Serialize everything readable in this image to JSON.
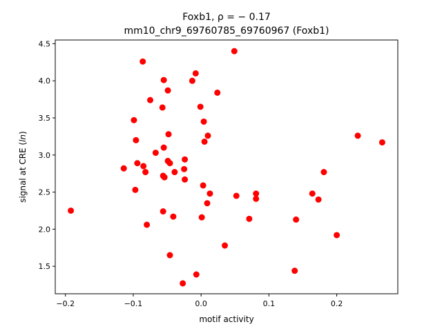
{
  "chart_data": {
    "type": "scatter",
    "title_line1": "Foxb1, ρ = − 0.17",
    "title_line2": "mm10_chr9_69760785_69760967 (Foxb1)",
    "xlabel": "motif activity",
    "ylabel": "signal at CRE (ln)",
    "xlim": [
      -0.215,
      0.29
    ],
    "ylim": [
      1.13,
      4.55
    ],
    "xticks": [
      -0.2,
      -0.1,
      0.0,
      0.1,
      0.2
    ],
    "xtick_labels": [
      "−0.2",
      "−0.1",
      "0.0",
      "0.1",
      "0.2"
    ],
    "yticks": [
      1.5,
      2.0,
      2.5,
      3.0,
      3.5,
      4.0,
      4.5
    ],
    "ytick_labels": [
      "1.5",
      "2.0",
      "2.5",
      "3.0",
      "3.5",
      "4.0",
      "4.5"
    ],
    "grid": false,
    "marker_color": "#ff0000",
    "points": [
      {
        "x": -0.192,
        "y": 2.25
      },
      {
        "x": -0.114,
        "y": 2.82
      },
      {
        "x": -0.099,
        "y": 3.47
      },
      {
        "x": -0.097,
        "y": 2.53
      },
      {
        "x": -0.096,
        "y": 3.2
      },
      {
        "x": -0.094,
        "y": 2.89
      },
      {
        "x": -0.086,
        "y": 4.26
      },
      {
        "x": -0.085,
        "y": 2.85
      },
      {
        "x": -0.082,
        "y": 2.77
      },
      {
        "x": -0.08,
        "y": 2.06
      },
      {
        "x": -0.075,
        "y": 3.74
      },
      {
        "x": -0.067,
        "y": 3.03
      },
      {
        "x": -0.057,
        "y": 3.64
      },
      {
        "x": -0.056,
        "y": 2.72
      },
      {
        "x": -0.056,
        "y": 2.24
      },
      {
        "x": -0.055,
        "y": 4.01
      },
      {
        "x": -0.055,
        "y": 3.1
      },
      {
        "x": -0.054,
        "y": 2.7
      },
      {
        "x": -0.049,
        "y": 3.87
      },
      {
        "x": -0.049,
        "y": 2.92
      },
      {
        "x": -0.048,
        "y": 3.28
      },
      {
        "x": -0.046,
        "y": 2.89
      },
      {
        "x": -0.046,
        "y": 1.65
      },
      {
        "x": -0.041,
        "y": 2.17
      },
      {
        "x": -0.039,
        "y": 2.77
      },
      {
        "x": -0.027,
        "y": 1.27
      },
      {
        "x": -0.025,
        "y": 2.81
      },
      {
        "x": -0.024,
        "y": 2.94
      },
      {
        "x": -0.024,
        "y": 2.67
      },
      {
        "x": -0.013,
        "y": 4.0
      },
      {
        "x": -0.008,
        "y": 4.1
      },
      {
        "x": -0.007,
        "y": 1.39
      },
      {
        "x": -0.001,
        "y": 3.65
      },
      {
        "x": 0.001,
        "y": 2.16
      },
      {
        "x": 0.003,
        "y": 2.59
      },
      {
        "x": 0.004,
        "y": 3.45
      },
      {
        "x": 0.005,
        "y": 3.18
      },
      {
        "x": 0.009,
        "y": 2.35
      },
      {
        "x": 0.01,
        "y": 3.26
      },
      {
        "x": 0.013,
        "y": 2.48
      },
      {
        "x": 0.024,
        "y": 3.84
      },
      {
        "x": 0.035,
        "y": 1.78
      },
      {
        "x": 0.049,
        "y": 4.4
      },
      {
        "x": 0.052,
        "y": 2.45
      },
      {
        "x": 0.071,
        "y": 2.14
      },
      {
        "x": 0.081,
        "y": 2.48
      },
      {
        "x": 0.081,
        "y": 2.41
      },
      {
        "x": 0.138,
        "y": 1.44
      },
      {
        "x": 0.14,
        "y": 2.13
      },
      {
        "x": 0.164,
        "y": 2.48
      },
      {
        "x": 0.173,
        "y": 2.4
      },
      {
        "x": 0.181,
        "y": 2.77
      },
      {
        "x": 0.2,
        "y": 1.92
      },
      {
        "x": 0.231,
        "y": 3.26
      },
      {
        "x": 0.267,
        "y": 3.17
      }
    ]
  }
}
